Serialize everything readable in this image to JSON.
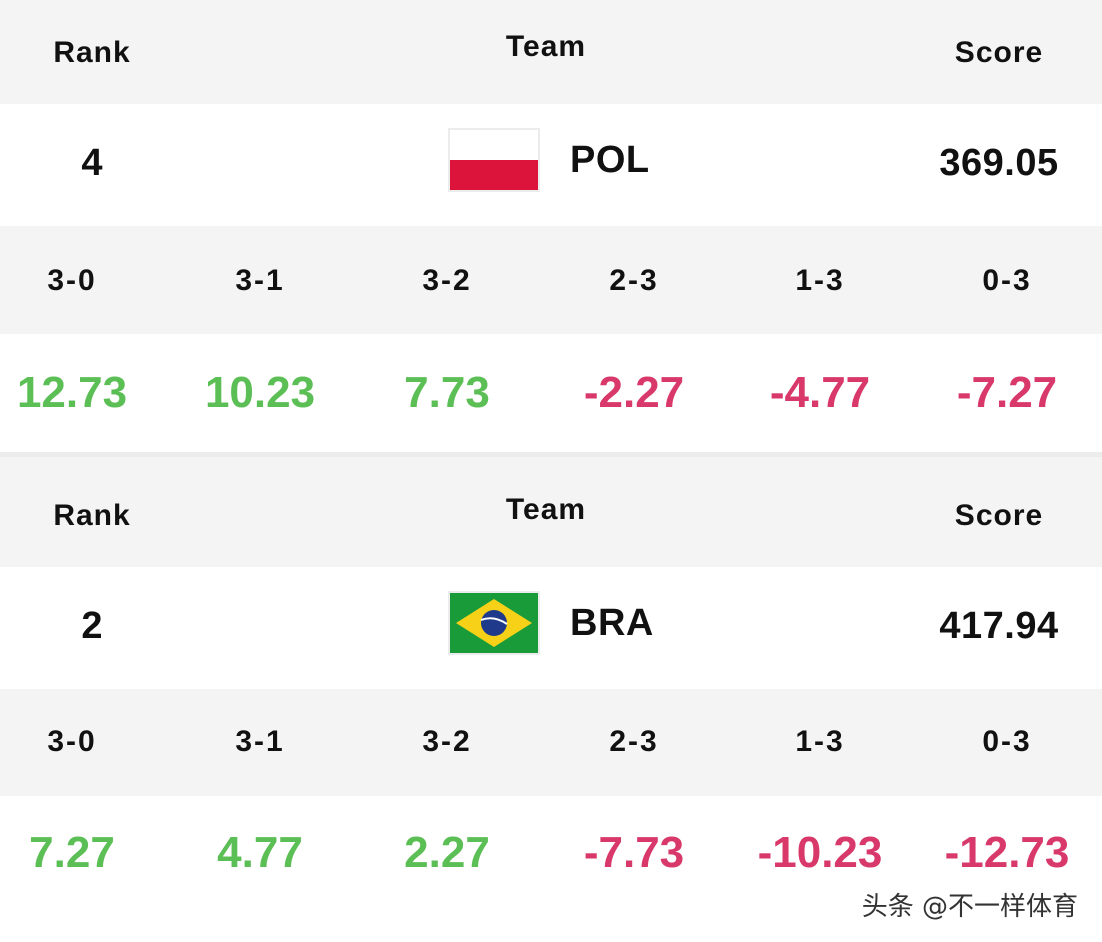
{
  "cards": [
    {
      "headers": {
        "rank": "Rank",
        "team": "Team",
        "score": "Score"
      },
      "rank": "4",
      "team": "POL",
      "flag_icon": "poland-flag-icon",
      "score": "369.05",
      "outcomes": [
        {
          "label": "3-0",
          "value": "12.73"
        },
        {
          "label": "3-1",
          "value": "10.23"
        },
        {
          "label": "3-2",
          "value": "7.73"
        },
        {
          "label": "2-3",
          "value": "-2.27"
        },
        {
          "label": "1-3",
          "value": "-4.77"
        },
        {
          "label": "0-3",
          "value": "-7.27"
        }
      ]
    },
    {
      "headers": {
        "rank": "Rank",
        "team": "Team",
        "score": "Score"
      },
      "rank": "2",
      "team": "BRA",
      "flag_icon": "brazil-flag-icon",
      "score": "417.94",
      "outcomes": [
        {
          "label": "3-0",
          "value": "7.27"
        },
        {
          "label": "3-1",
          "value": "4.77"
        },
        {
          "label": "3-2",
          "value": "2.27"
        },
        {
          "label": "2-3",
          "value": "-7.73"
        },
        {
          "label": "1-3",
          "value": "-10.23"
        },
        {
          "label": "0-3",
          "value": "-12.73"
        }
      ]
    }
  ],
  "colors": {
    "positive": "#5cbf55",
    "negative": "#d9396a",
    "header_bg": "#f4f4f4"
  },
  "watermark": "头条 @不一样体育"
}
